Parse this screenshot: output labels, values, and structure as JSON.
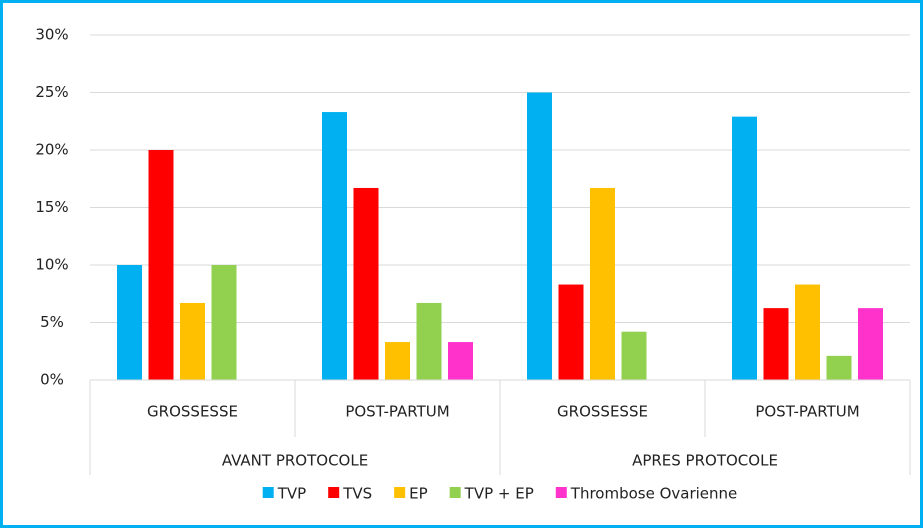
{
  "chart_data": {
    "type": "bar",
    "groups": [
      {
        "name": "AVANT PROTOCOLE",
        "categories": [
          "GROSSESSE",
          "POST-PARTUM"
        ]
      },
      {
        "name": "APRES PROTOCOLE",
        "categories": [
          "GROSSESSE",
          "POST-PARTUM"
        ]
      }
    ],
    "series": [
      {
        "name": "TVP",
        "color": "#00b0f0",
        "values": [
          10,
          23.3,
          25,
          22.9
        ]
      },
      {
        "name": "TVS",
        "color": "#ff0000",
        "values": [
          20,
          16.7,
          8.3,
          6.25
        ]
      },
      {
        "name": "EP",
        "color": "#ffc000",
        "values": [
          6.7,
          3.3,
          16.7,
          8.3
        ]
      },
      {
        "name": "TVP + EP",
        "color": "#92d050",
        "values": [
          10,
          6.7,
          4.2,
          2.1
        ]
      },
      {
        "name": "Thrombose Ovarienne",
        "color": "#ff33cc",
        "values": [
          0,
          3.3,
          0,
          6.25
        ]
      }
    ],
    "ylim": [
      0,
      30
    ],
    "yticks": [
      {
        "value": 0,
        "label": "0%"
      },
      {
        "value": 5,
        "label": "5%"
      },
      {
        "value": 10,
        "label": "10%"
      },
      {
        "value": 15,
        "label": "15%"
      },
      {
        "value": 20,
        "label": "20%"
      },
      {
        "value": 25,
        "label": "25%"
      },
      {
        "value": 30,
        "label": "30%"
      }
    ],
    "grid": true
  }
}
